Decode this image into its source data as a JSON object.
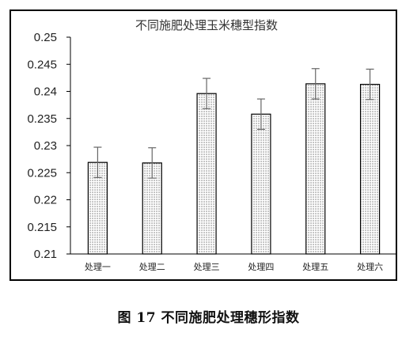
{
  "chart_data": {
    "type": "bar",
    "title": "不同施肥处理玉米穗型指数",
    "categories": [
      "处理一",
      "处理二",
      "处理三",
      "处理四",
      "处理五",
      "处理六"
    ],
    "values": [
      0.2269,
      0.2268,
      0.2396,
      0.2358,
      0.2414,
      0.2413
    ],
    "error": [
      0.0028,
      0.0028,
      0.0028,
      0.0028,
      0.0028,
      0.0028
    ],
    "ylim": [
      0.21,
      0.25
    ],
    "yticks": [
      "0.21",
      "0.215",
      "0.22",
      "0.225",
      "0.23",
      "0.235",
      "0.24",
      "0.245",
      "0.25"
    ],
    "xlabel": "",
    "ylabel": "",
    "bar_fill": "dotted",
    "grid": false,
    "legend": false
  },
  "caption": "图 17  不同施肥处理穗形指数"
}
